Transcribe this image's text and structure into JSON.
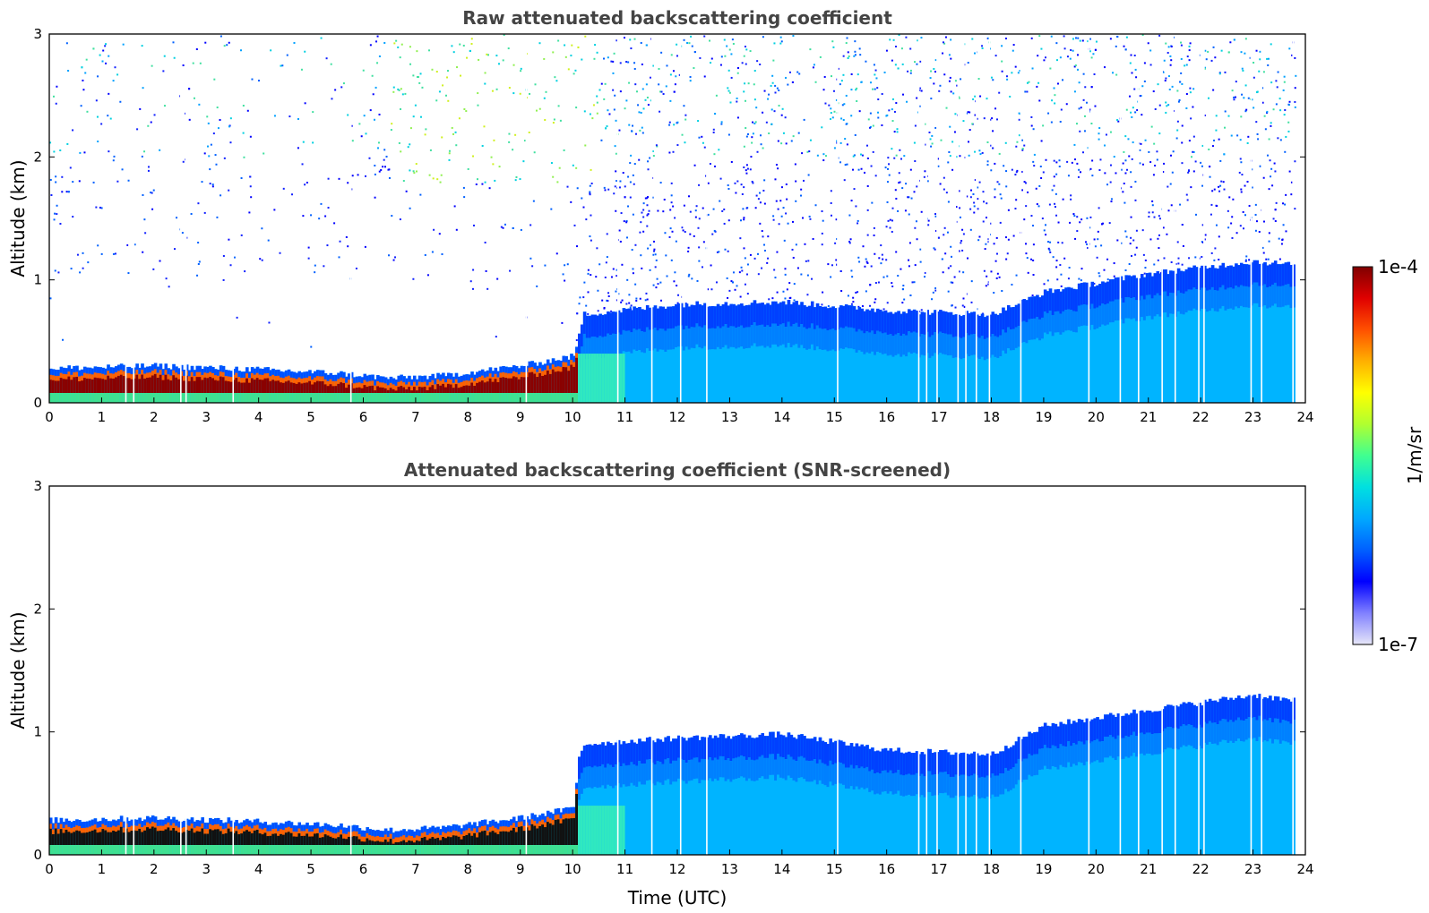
{
  "chart_data": [
    {
      "type": "heatmap",
      "title": "Raw attenuated backscattering coefficient",
      "ylabel": "Altitude (km)",
      "xlabel": "",
      "xlim": [
        0,
        24
      ],
      "ylim": [
        0,
        3
      ],
      "xticks": [
        "0",
        "1",
        "2",
        "3",
        "4",
        "5",
        "6",
        "7",
        "8",
        "9",
        "10",
        "11",
        "12",
        "13",
        "14",
        "15",
        "16",
        "17",
        "18",
        "19",
        "20",
        "21",
        "22",
        "23",
        "24"
      ],
      "yticks": [
        "0",
        "1",
        "2",
        "3"
      ],
      "grid": false,
      "x_unit": "hours UTC",
      "y_unit": "km",
      "aerosol_layer_top_km": [
        {
          "x": 0,
          "y": 0.28
        },
        {
          "x": 2,
          "y": 0.3
        },
        {
          "x": 4,
          "y": 0.27
        },
        {
          "x": 5.5,
          "y": 0.24
        },
        {
          "x": 6.5,
          "y": 0.2
        },
        {
          "x": 7.5,
          "y": 0.22
        },
        {
          "x": 9,
          "y": 0.3
        },
        {
          "x": 10,
          "y": 0.38
        },
        {
          "x": 10.1,
          "y": 0.55
        },
        {
          "x": 10.2,
          "y": 0.72
        },
        {
          "x": 12,
          "y": 0.8
        },
        {
          "x": 14,
          "y": 0.82
        },
        {
          "x": 16,
          "y": 0.75
        },
        {
          "x": 18,
          "y": 0.72
        },
        {
          "x": 19,
          "y": 0.9
        },
        {
          "x": 21,
          "y": 1.05
        },
        {
          "x": 23,
          "y": 1.15
        },
        {
          "x": 23.8,
          "y": 1.12
        }
      ],
      "noise_level": "high"
    },
    {
      "type": "heatmap",
      "title": "Attenuated backscattering coefficient (SNR-screened)",
      "ylabel": "Altitude (km)",
      "xlabel": "Time (UTC)",
      "xlim": [
        0,
        24
      ],
      "ylim": [
        0,
        3
      ],
      "xticks": [
        "0",
        "1",
        "2",
        "3",
        "4",
        "5",
        "6",
        "7",
        "8",
        "9",
        "10",
        "11",
        "12",
        "13",
        "14",
        "15",
        "16",
        "17",
        "18",
        "19",
        "20",
        "21",
        "22",
        "23",
        "24"
      ],
      "yticks": [
        "0",
        "1",
        "2",
        "3"
      ],
      "grid": false,
      "x_unit": "hours UTC",
      "y_unit": "km",
      "aerosol_layer_top_km": [
        {
          "x": 0,
          "y": 0.28
        },
        {
          "x": 2,
          "y": 0.3
        },
        {
          "x": 4,
          "y": 0.27
        },
        {
          "x": 5.5,
          "y": 0.24
        },
        {
          "x": 6.5,
          "y": 0.2
        },
        {
          "x": 7.5,
          "y": 0.22
        },
        {
          "x": 9,
          "y": 0.3
        },
        {
          "x": 10,
          "y": 0.38
        },
        {
          "x": 10.1,
          "y": 0.8
        },
        {
          "x": 10.2,
          "y": 0.9
        },
        {
          "x": 12,
          "y": 0.95
        },
        {
          "x": 14,
          "y": 0.98
        },
        {
          "x": 16,
          "y": 0.85
        },
        {
          "x": 18,
          "y": 0.82
        },
        {
          "x": 19,
          "y": 1.05
        },
        {
          "x": 21,
          "y": 1.18
        },
        {
          "x": 23,
          "y": 1.3
        },
        {
          "x": 23.8,
          "y": 1.25
        }
      ],
      "noise_level": "screened"
    }
  ],
  "colorbar": {
    "label": "1/m/sr",
    "max_label": "1e-4",
    "min_label": "1e-7",
    "scale": "log",
    "colors": [
      "#e6e6f8",
      "#8080ff",
      "#0000ff",
      "#0060ff",
      "#00a8ff",
      "#00e0e0",
      "#40ff90",
      "#b0ff30",
      "#ffff00",
      "#ffb000",
      "#ff5000",
      "#e00000",
      "#800000"
    ]
  },
  "gaps_hours": [
    1.45,
    1.6,
    2.5,
    2.6,
    3.5,
    5.75,
    9.1,
    10.85,
    11.5,
    12.05,
    12.55,
    15.05,
    16.6,
    16.75,
    16.95,
    17.35,
    17.5,
    17.7,
    17.95,
    18.55,
    19.85,
    20.45,
    20.8,
    21.25,
    21.5,
    21.95,
    22.05,
    22.95,
    23.15,
    23.75
  ]
}
